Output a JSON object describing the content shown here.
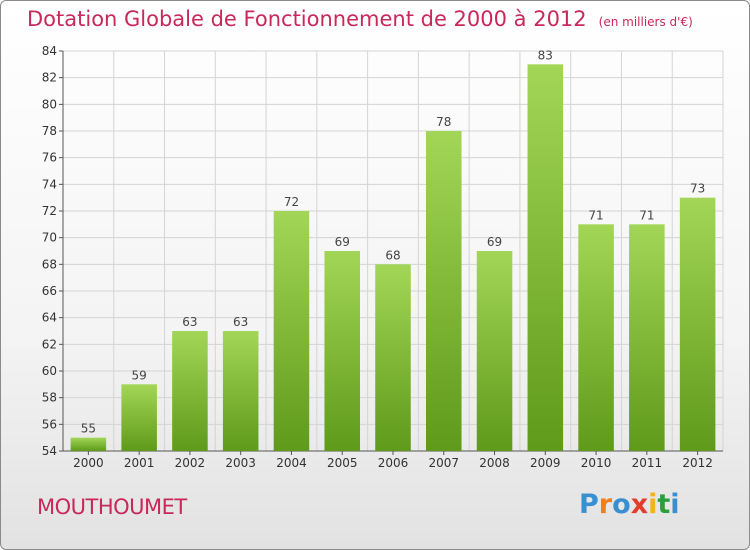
{
  "title": "Dotation Globale de Fonctionnement de 2000 à 2012",
  "subtitle": "(en milliers d'€)",
  "commune": "MOUTHOUMET",
  "logo": {
    "text": "Proxiti",
    "letters": [
      "P",
      "r",
      "o",
      "x",
      "i",
      "t",
      "i"
    ],
    "colors": [
      "#3a8fd0",
      "#f07f1a",
      "#3a8fd0",
      "#e23c2c",
      "#f3b31b",
      "#2e9e3c",
      "#3a8fd0"
    ]
  },
  "colors": {
    "title": "#c8285a",
    "bar_light": "#a3d656",
    "bar_dark": "#5f9a1a",
    "grid": "#d4d4d4",
    "axis": "#555555"
  },
  "chart_data": {
    "type": "bar",
    "categories": [
      "2000",
      "2001",
      "2002",
      "2003",
      "2004",
      "2005",
      "2006",
      "2007",
      "2008",
      "2009",
      "2010",
      "2011",
      "2012"
    ],
    "values": [
      55,
      59,
      63,
      63,
      72,
      69,
      68,
      78,
      69,
      83,
      71,
      71,
      73
    ],
    "title": "Dotation Globale de Fonctionnement de 2000 à 2012",
    "subtitle": "(en milliers d'€)",
    "xlabel": "",
    "ylabel": "",
    "ylim": [
      54,
      84
    ],
    "yticks": [
      54,
      56,
      58,
      60,
      62,
      64,
      66,
      68,
      70,
      72,
      74,
      76,
      78,
      80,
      82,
      84
    ],
    "grid": true,
    "data_labels": true
  }
}
